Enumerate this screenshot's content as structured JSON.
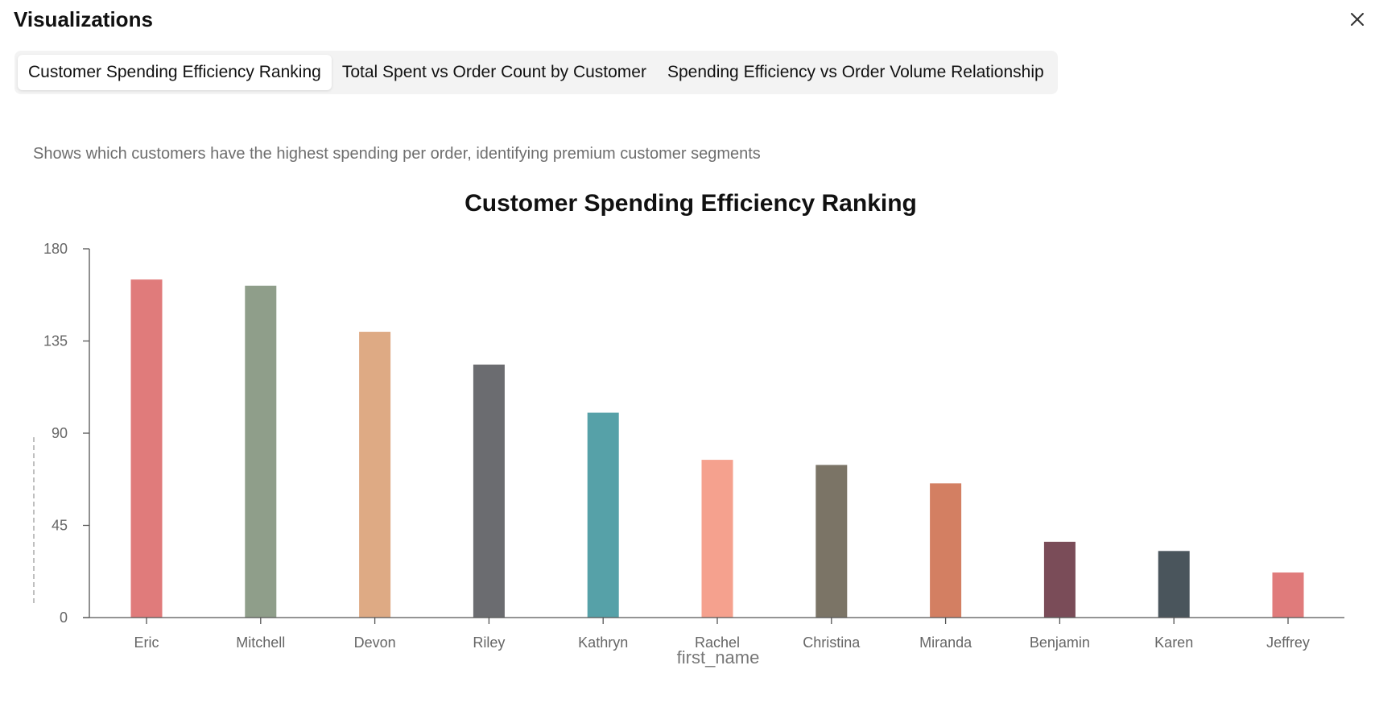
{
  "panel": {
    "title": "Visualizations",
    "close_icon": "close-icon"
  },
  "tabs": [
    {
      "label": "Customer Spending Efficiency Ranking",
      "active": true
    },
    {
      "label": "Total Spent vs Order Count by Customer",
      "active": false
    },
    {
      "label": "Spending Efficiency vs Order Volume Relationship",
      "active": false
    }
  ],
  "description": "Shows which customers have the highest spending per order, identifying premium customer segments",
  "chart_data": {
    "type": "bar",
    "title": "Customer Spending Efficiency Ranking",
    "xlabel": "first_name",
    "ylabel": "",
    "categories": [
      "Eric",
      "Mitchell",
      "Devon",
      "Riley",
      "Kathryn",
      "Rachel",
      "Christina",
      "Miranda",
      "Benjamin",
      "Karen",
      "Jeffrey"
    ],
    "values": [
      165,
      162,
      139.5,
      123.5,
      100,
      77,
      74.5,
      65.5,
      37,
      32.5,
      22
    ],
    "ylim": [
      0,
      180
    ],
    "yticks": [
      0,
      45,
      90,
      135,
      180
    ],
    "colors": [
      "#e07b7b",
      "#8f9e8a",
      "#deaa84",
      "#6b6c70",
      "#56a1a8",
      "#f5a18e",
      "#7b7466",
      "#d37f62",
      "#7a4c58",
      "#4a555c",
      "#e07b7b"
    ],
    "grid": false,
    "legend": "none"
  }
}
